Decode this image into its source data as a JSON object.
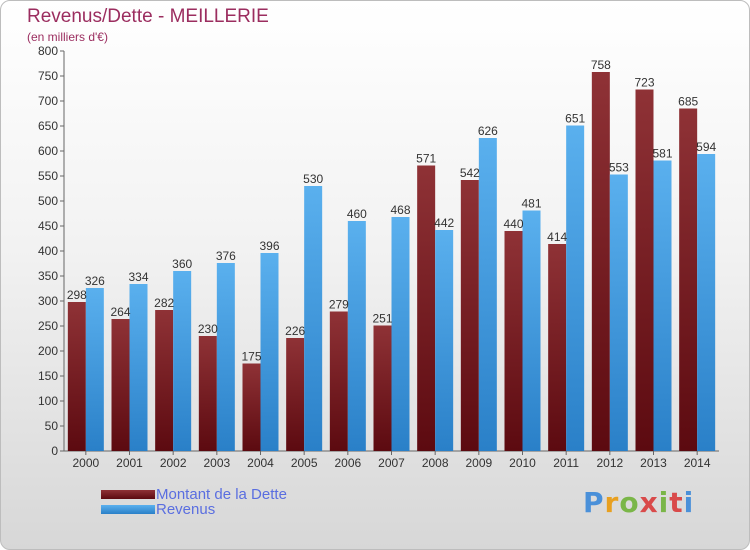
{
  "title": "Revenus/Dette - MEILLERIE",
  "subtitle": "(en milliers d'€)",
  "logo_text": "Proxiti",
  "colors": {
    "title": "#9b2d5f",
    "dette": "#7a1f23",
    "revenus": "#4aa0e2",
    "legend_text": "#5a6ee0"
  },
  "chart_data": {
    "type": "bar",
    "title": "Revenus/Dette - MEILLERIE",
    "subtitle": "(en milliers d'€)",
    "categories": [
      "2000",
      "2001",
      "2002",
      "2003",
      "2004",
      "2005",
      "2006",
      "2007",
      "2008",
      "2009",
      "2010",
      "2011",
      "2012",
      "2013",
      "2014"
    ],
    "series": [
      {
        "name": "Montant de la Dette",
        "color": "#7a1f23",
        "values": [
          298,
          264,
          282,
          230,
          175,
          226,
          279,
          251,
          571,
          542,
          440,
          414,
          758,
          723,
          685
        ]
      },
      {
        "name": "Revenus",
        "color": "#4aa0e2",
        "values": [
          326,
          334,
          360,
          376,
          396,
          530,
          460,
          468,
          442,
          626,
          481,
          651,
          553,
          581,
          594
        ]
      }
    ],
    "ylim": [
      0,
      800
    ],
    "yticks": [
      0,
      50,
      100,
      150,
      200,
      250,
      300,
      350,
      400,
      450,
      500,
      550,
      600,
      650,
      700,
      750,
      800
    ],
    "grid": false,
    "legend_position": "bottom-left"
  }
}
